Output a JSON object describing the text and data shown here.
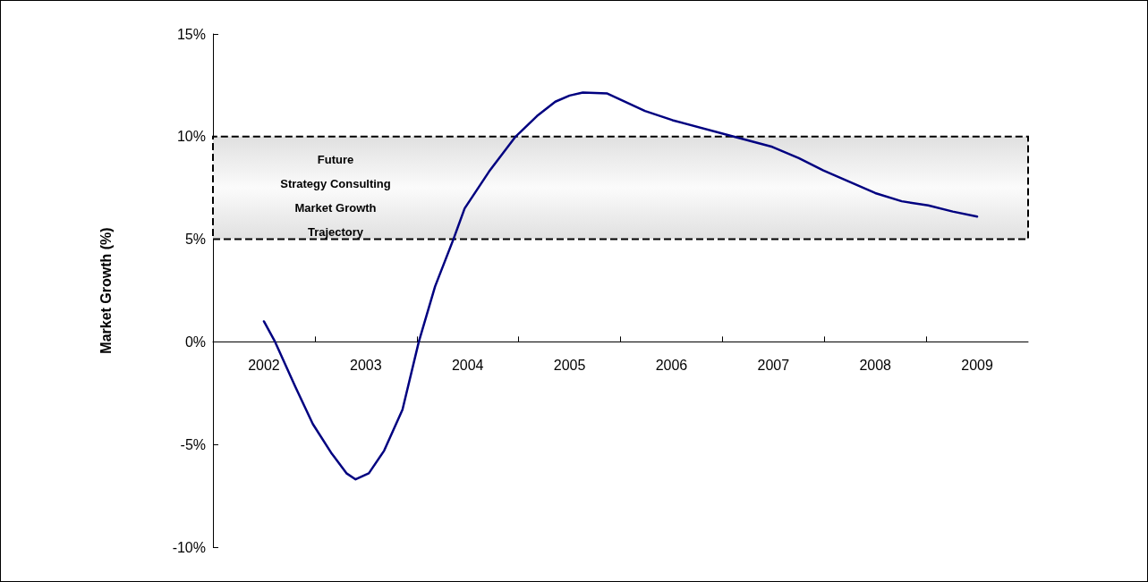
{
  "chart_data": {
    "type": "line",
    "ylabel": "Market Growth (%)",
    "x": [
      2002.0,
      2002.11,
      2002.31,
      2002.48,
      2002.66,
      2002.81,
      2002.9,
      2003.03,
      2003.18,
      2003.36,
      2003.52,
      2003.68,
      2003.86,
      2003.97,
      2004.21,
      2004.47,
      2004.68,
      2004.86,
      2005.0,
      2005.13,
      2005.37,
      2005.74,
      2006.01,
      2006.61,
      2006.99,
      2007.25,
      2007.49,
      2008.0,
      2008.26,
      2008.52,
      2008.76,
      2009.0
    ],
    "series": [
      {
        "color": "#000080",
        "values": [
          1.0,
          0.0,
          -2.2,
          -4.0,
          -5.4,
          -6.4,
          -6.7,
          -6.4,
          -5.3,
          -3.3,
          0.0,
          2.7,
          5.0,
          6.5,
          8.3,
          10.0,
          11.0,
          11.7,
          12.0,
          12.15,
          12.1,
          11.25,
          10.8,
          10.0,
          9.5,
          8.95,
          8.35,
          7.25,
          6.85,
          6.65,
          6.35,
          6.1
        ]
      }
    ],
    "xlim": [
      2001.5,
      2009.5
    ],
    "xticks": [
      2002,
      2003,
      2004,
      2005,
      2006,
      2007,
      2008,
      2009
    ],
    "ylim": [
      -10,
      15
    ],
    "yticks": [
      {
        "value": -10,
        "label": "-10%"
      },
      {
        "value": -5,
        "label": "-5%"
      },
      {
        "value": 0,
        "label": "0%"
      },
      {
        "value": 5,
        "label": "5%"
      },
      {
        "value": 10,
        "label": "10%"
      },
      {
        "value": 15,
        "label": "15%"
      }
    ],
    "bands": [
      {
        "axis": "y",
        "from": 5,
        "to": 10,
        "label": "Future\nStrategy Consulting\nMarket Growth\nTrajectory",
        "color": "#e0e0e0"
      }
    ],
    "grid": false,
    "marker": "none",
    "line_style": "solid"
  }
}
